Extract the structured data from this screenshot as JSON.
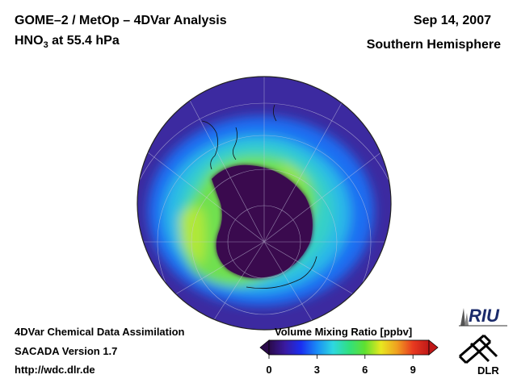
{
  "header": {
    "title_line1": "GOME–2 / MetOp – 4DVar Analysis",
    "species_prefix": "HNO",
    "species_subscript": "3",
    "species_suffix": " at 55.4 hPa",
    "date": "Sep 14, 2007",
    "hemisphere": "Southern Hemisphere"
  },
  "footer": {
    "line1": "4DVar Chemical Data Assimilation",
    "line2": "SACADA Version 1.7",
    "url": "http://wdc.dlr.de"
  },
  "colorbar": {
    "title": "Volume Mixing Ratio [ppbv]",
    "min": 0,
    "max": 10,
    "ticks": [
      "0",
      "3",
      "6",
      "9"
    ],
    "colors": [
      "#2a0a4a",
      "#3a1aa0",
      "#1a2ef0",
      "#1a8cf5",
      "#2ed8e0",
      "#30e080",
      "#60e030",
      "#e8e820",
      "#f0a020",
      "#e83a20",
      "#c01818"
    ]
  },
  "logos": {
    "riu": "RIU",
    "dlr": "DLR"
  },
  "map": {
    "projection": "orthographic",
    "center": "South Pole",
    "vortex_color": "#3a0a4e",
    "outer_color": "#3c2aa0",
    "collar_color": "#8ee040"
  }
}
